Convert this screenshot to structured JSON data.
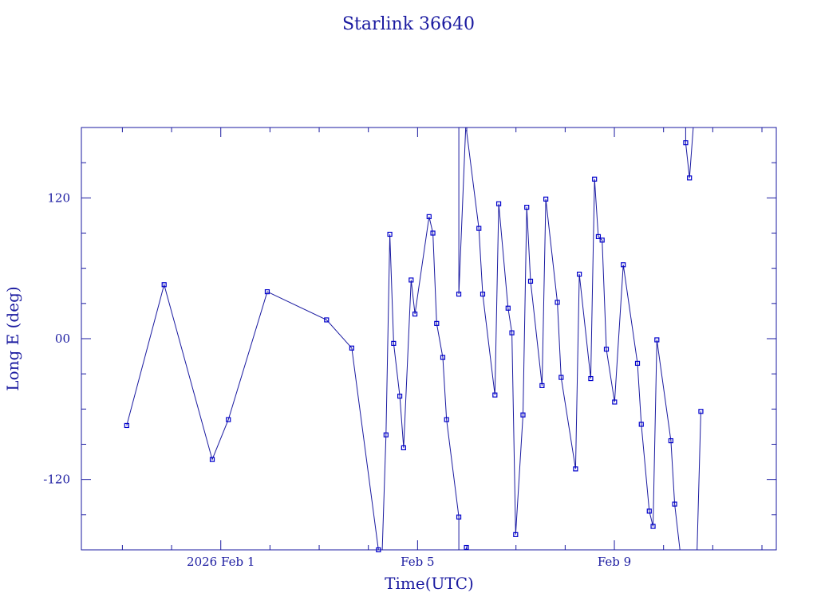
{
  "chart_data": {
    "type": "line",
    "title": "Starlink 36640",
    "xlabel": "Time(UTC)",
    "ylabel": "Long E (deg)",
    "xlim": [
      "2026-01-29T04:00",
      "2026-02-12T07:00"
    ],
    "ylim": [
      -180,
      180
    ],
    "x_ticks": [
      {
        "x": "2026-02-01T00:00",
        "label": "2026 Feb  1"
      },
      {
        "x": "2026-02-05T00:00",
        "label": "Feb  5"
      },
      {
        "x": "2026-02-09T00:00",
        "label": "Feb  9"
      }
    ],
    "y_ticks": [
      {
        "y": 120,
        "label": "120"
      },
      {
        "y": 0,
        "label": "00"
      },
      {
        "y": -120,
        "label": "-120"
      }
    ],
    "grid": false,
    "colors": {
      "line": "#1a1aa0",
      "marker": "#0000cc"
    },
    "series": [
      {
        "segments": [
          [
            [
              "2026-01-30T02:07",
              -74
            ],
            [
              "2026-01-30T20:22",
              46
            ],
            [
              "2026-01-31T19:50",
              -103
            ],
            [
              "2026-02-01T03:42",
              -69
            ],
            [
              "2026-02-01T22:40",
              40
            ],
            [
              "2026-02-03T03:36",
              16
            ],
            [
              "2026-02-03T15:54",
              -8
            ],
            [
              "2026-02-04T04:55",
              -180
            ]
          ],
          [
            [
              "2026-02-04T04:55",
              180
            ],
            [
              "2026-02-04T06:46",
              180
            ]
          ],
          [
            [
              "2026-02-04T06:46",
              -180
            ],
            [
              "2026-02-04T08:37",
              -82
            ],
            [
              "2026-02-04T10:28",
              89
            ],
            [
              "2026-02-04T12:19",
              -4
            ],
            [
              "2026-02-04T15:20",
              -49
            ],
            [
              "2026-02-04T17:11",
              -93
            ],
            [
              "2026-02-04T20:52",
              50
            ],
            [
              "2026-02-04T22:43",
              21
            ],
            [
              "2026-02-05T05:37",
              104
            ],
            [
              "2026-02-05T07:28",
              90
            ],
            [
              "2026-02-05T09:19",
              13
            ],
            [
              "2026-02-05T12:18",
              -16
            ],
            [
              "2026-02-05T14:09",
              -69
            ],
            [
              "2026-02-05T20:07",
              -152
            ],
            [
              "2026-02-05T20:07",
              -180
            ]
          ],
          [
            [
              "2026-02-05T20:07",
              180
            ],
            [
              "2026-02-05T20:07",
              38
            ],
            [
              "2026-02-05T23:28",
              180
            ]
          ],
          [
            [
              "2026-02-05T23:28",
              -180
            ],
            [
              "2026-02-05T23:49",
              -178
            ]
          ],
          [
            [
              "2026-02-05T23:49",
              178
            ],
            [
              "2026-02-06T05:55",
              94
            ],
            [
              "2026-02-06T07:46",
              38
            ],
            [
              "2026-02-06T13:44",
              -48
            ],
            [
              "2026-02-06T15:35",
              115
            ],
            [
              "2026-02-06T20:09",
              26
            ],
            [
              "2026-02-06T22:00",
              5
            ],
            [
              "2026-02-06T23:51",
              -167
            ],
            [
              "2026-02-07T03:25",
              -65
            ],
            [
              "2026-02-07T05:16",
              112
            ],
            [
              "2026-02-07T07:07",
              49
            ],
            [
              "2026-02-07T12:43",
              -40
            ],
            [
              "2026-02-07T14:34",
              119
            ],
            [
              "2026-02-07T20:11",
              31
            ],
            [
              "2026-02-07T22:02",
              -33
            ],
            [
              "2026-02-08T05:04",
              -111
            ],
            [
              "2026-02-08T06:55",
              55
            ],
            [
              "2026-02-08T12:29",
              -34
            ],
            [
              "2026-02-08T14:20",
              136
            ],
            [
              "2026-02-08T16:11",
              87
            ],
            [
              "2026-02-08T18:02",
              84
            ],
            [
              "2026-02-08T20:06",
              -9
            ],
            [
              "2026-02-09T00:07",
              -54
            ],
            [
              "2026-02-09T04:21",
              63
            ],
            [
              "2026-02-09T11:17",
              -21
            ],
            [
              "2026-02-09T13:08",
              -73
            ],
            [
              "2026-02-09T17:02",
              -147
            ],
            [
              "2026-02-09T18:53",
              -160
            ],
            [
              "2026-02-09T20:44",
              -1
            ],
            [
              "2026-02-10T03:34",
              -87
            ],
            [
              "2026-02-10T05:25",
              -141
            ],
            [
              "2026-02-10T08:00",
              -180
            ]
          ],
          [
            [
              "2026-02-10T08:00",
              180
            ],
            [
              "2026-02-10T10:48",
              180
            ]
          ],
          [
            [
              "2026-02-10T10:48",
              180
            ],
            [
              "2026-02-10T10:48",
              167
            ],
            [
              "2026-02-10T12:39",
              137
            ],
            [
              "2026-02-10T14:30",
              180
            ]
          ],
          [
            [
              "2026-02-10T14:30",
              -180
            ],
            [
              "2026-02-10T16:21",
              -180
            ],
            [
              "2026-02-10T18:12",
              -62
            ]
          ]
        ],
        "markers": [
          [
            "2026-01-30T02:07",
            -74
          ],
          [
            "2026-01-30T20:22",
            46
          ],
          [
            "2026-01-31T19:50",
            -103
          ],
          [
            "2026-02-01T03:42",
            -69
          ],
          [
            "2026-02-01T22:40",
            40
          ],
          [
            "2026-02-03T03:36",
            16
          ],
          [
            "2026-02-03T15:54",
            -8
          ],
          [
            "2026-02-04T04:55",
            -180
          ],
          [
            "2026-02-04T08:37",
            -82
          ],
          [
            "2026-02-04T10:28",
            89
          ],
          [
            "2026-02-04T12:19",
            -4
          ],
          [
            "2026-02-04T15:20",
            -49
          ],
          [
            "2026-02-04T17:11",
            -93
          ],
          [
            "2026-02-04T20:52",
            50
          ],
          [
            "2026-02-04T22:43",
            21
          ],
          [
            "2026-02-05T05:37",
            104
          ],
          [
            "2026-02-05T07:28",
            90
          ],
          [
            "2026-02-05T09:19",
            13
          ],
          [
            "2026-02-05T12:18",
            -16
          ],
          [
            "2026-02-05T14:09",
            -69
          ],
          [
            "2026-02-05T20:07",
            -152
          ],
          [
            "2026-02-05T20:07",
            38
          ],
          [
            "2026-02-05T23:49",
            -178
          ],
          [
            "2026-02-06T05:55",
            94
          ],
          [
            "2026-02-06T07:46",
            38
          ],
          [
            "2026-02-06T13:44",
            -48
          ],
          [
            "2026-02-06T15:35",
            115
          ],
          [
            "2026-02-06T20:09",
            26
          ],
          [
            "2026-02-06T22:00",
            5
          ],
          [
            "2026-02-06T23:51",
            -167
          ],
          [
            "2026-02-07T03:25",
            -65
          ],
          [
            "2026-02-07T05:16",
            112
          ],
          [
            "2026-02-07T07:07",
            49
          ],
          [
            "2026-02-07T12:43",
            -40
          ],
          [
            "2026-02-07T14:34",
            119
          ],
          [
            "2026-02-07T20:11",
            31
          ],
          [
            "2026-02-07T22:02",
            -33
          ],
          [
            "2026-02-08T05:04",
            -111
          ],
          [
            "2026-02-08T06:55",
            55
          ],
          [
            "2026-02-08T12:29",
            -34
          ],
          [
            "2026-02-08T14:20",
            136
          ],
          [
            "2026-02-08T16:11",
            87
          ],
          [
            "2026-02-08T18:02",
            84
          ],
          [
            "2026-02-08T20:06",
            -9
          ],
          [
            "2026-02-09T00:07",
            -54
          ],
          [
            "2026-02-09T04:21",
            63
          ],
          [
            "2026-02-09T11:17",
            -21
          ],
          [
            "2026-02-09T13:08",
            -73
          ],
          [
            "2026-02-09T17:02",
            -147
          ],
          [
            "2026-02-09T18:53",
            -160
          ],
          [
            "2026-02-09T20:44",
            -1
          ],
          [
            "2026-02-10T03:34",
            -87
          ],
          [
            "2026-02-10T05:25",
            -141
          ],
          [
            "2026-02-10T10:48",
            167
          ],
          [
            "2026-02-10T12:39",
            137
          ],
          [
            "2026-02-10T18:12",
            -62
          ]
        ]
      }
    ]
  }
}
